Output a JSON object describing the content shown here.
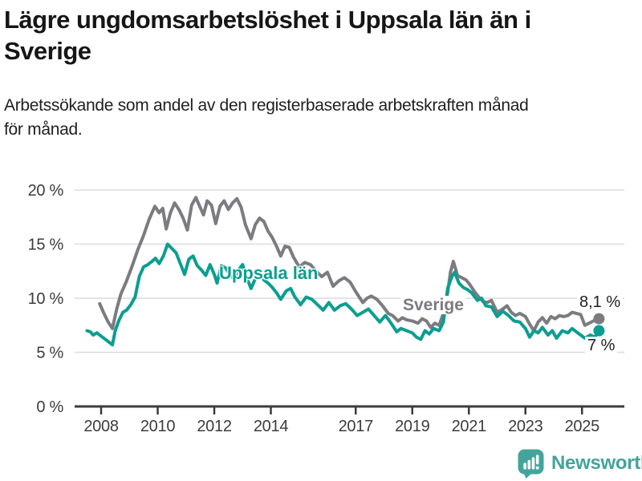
{
  "header": {
    "title_lines": [
      "Lägre ungdomsarbetslöshet i Uppsala län än i",
      "Sverige"
    ],
    "subtitle_lines": [
      "Arbetssökande som andel av den registerbaserade arbetskraften månad",
      "för månad."
    ]
  },
  "chart_data": {
    "type": "line",
    "title": "Lägre ungdomsarbetslöshet i Uppsala län än i Sverige",
    "subtitle": "Arbetssökande som andel av den registerbaserade arbetskraften månad för månad.",
    "unit": "%",
    "grid": "horizontal",
    "legend": "inline-labels",
    "x_axis": {
      "range": [
        2007.5,
        2025.6
      ],
      "ticks": [
        {
          "year": 2008,
          "label": "2008"
        },
        {
          "year": 2010,
          "label": "2010"
        },
        {
          "year": 2012,
          "label": "2012"
        },
        {
          "year": 2014,
          "label": "2014"
        },
        {
          "year": 2017,
          "label": "2017"
        },
        {
          "year": 2019,
          "label": "2019"
        },
        {
          "year": 2021,
          "label": "2021"
        },
        {
          "year": 2023,
          "label": "2023"
        },
        {
          "year": 2025,
          "label": "2025"
        }
      ]
    },
    "y_axis": {
      "range": [
        0,
        20
      ],
      "ticks": [
        {
          "value": 0,
          "label": "0 %"
        },
        {
          "value": 5,
          "label": "5 %"
        },
        {
          "value": 10,
          "label": "10 %"
        },
        {
          "value": 15,
          "label": "15 %"
        },
        {
          "value": 20,
          "label": "20 %"
        }
      ]
    },
    "colors": {
      "gridline": "#dcdcdc",
      "axis_line": "#3b3b3b",
      "axis_text": "#3c3c3c",
      "end_label_text": "#1f1f1f"
    },
    "series": [
      {
        "name": "Sverige",
        "color": "#7b7b80",
        "end_label": "8,1 %",
        "end_value": 8.1,
        "points": [
          [
            2007.95,
            9.5
          ],
          [
            2008.1,
            8.6
          ],
          [
            2008.25,
            7.8
          ],
          [
            2008.4,
            7.2
          ],
          [
            2008.55,
            9.0
          ],
          [
            2008.7,
            10.4
          ],
          [
            2008.9,
            11.6
          ],
          [
            2009.1,
            13.0
          ],
          [
            2009.3,
            14.5
          ],
          [
            2009.5,
            15.8
          ],
          [
            2009.7,
            17.3
          ],
          [
            2009.9,
            18.5
          ],
          [
            2010.05,
            17.9
          ],
          [
            2010.18,
            18.3
          ],
          [
            2010.3,
            16.4
          ],
          [
            2010.45,
            17.9
          ],
          [
            2010.6,
            18.8
          ],
          [
            2010.75,
            18.2
          ],
          [
            2010.9,
            17.4
          ],
          [
            2011.05,
            16.3
          ],
          [
            2011.2,
            18.6
          ],
          [
            2011.35,
            19.3
          ],
          [
            2011.5,
            18.4
          ],
          [
            2011.62,
            17.7
          ],
          [
            2011.75,
            19.0
          ],
          [
            2011.9,
            18.6
          ],
          [
            2012.05,
            16.9
          ],
          [
            2012.2,
            18.5
          ],
          [
            2012.35,
            19.0
          ],
          [
            2012.5,
            18.2
          ],
          [
            2012.65,
            18.8
          ],
          [
            2012.8,
            19.2
          ],
          [
            2012.95,
            18.4
          ],
          [
            2013.1,
            16.8
          ],
          [
            2013.3,
            15.5
          ],
          [
            2013.45,
            16.8
          ],
          [
            2013.6,
            17.4
          ],
          [
            2013.75,
            17.1
          ],
          [
            2013.9,
            16.2
          ],
          [
            2014.05,
            15.6
          ],
          [
            2014.2,
            14.8
          ],
          [
            2014.35,
            13.9
          ],
          [
            2014.5,
            14.8
          ],
          [
            2014.65,
            14.7
          ],
          [
            2014.8,
            13.8
          ],
          [
            2015.0,
            12.9
          ],
          [
            2015.2,
            13.3
          ],
          [
            2015.4,
            13.1
          ],
          [
            2015.6,
            12.5
          ],
          [
            2015.8,
            12.0
          ],
          [
            2016.0,
            12.4
          ],
          [
            2016.2,
            11.1
          ],
          [
            2016.4,
            11.6
          ],
          [
            2016.6,
            11.9
          ],
          [
            2016.8,
            11.5
          ],
          [
            2017.0,
            10.6
          ],
          [
            2017.25,
            9.6
          ],
          [
            2017.4,
            10.0
          ],
          [
            2017.55,
            10.2
          ],
          [
            2017.75,
            9.9
          ],
          [
            2017.95,
            9.3
          ],
          [
            2018.15,
            8.6
          ],
          [
            2018.3,
            8.4
          ],
          [
            2018.5,
            7.9
          ],
          [
            2018.65,
            8.2
          ],
          [
            2018.8,
            8.0
          ],
          [
            2019.0,
            7.9
          ],
          [
            2019.2,
            7.7
          ],
          [
            2019.35,
            8.1
          ],
          [
            2019.5,
            7.9
          ],
          [
            2019.65,
            7.3
          ],
          [
            2019.8,
            7.7
          ],
          [
            2019.95,
            7.5
          ],
          [
            2020.1,
            8.6
          ],
          [
            2020.25,
            10.5
          ],
          [
            2020.35,
            12.4
          ],
          [
            2020.45,
            13.4
          ],
          [
            2020.6,
            12.1
          ],
          [
            2020.75,
            11.9
          ],
          [
            2020.9,
            11.7
          ],
          [
            2021.05,
            11.2
          ],
          [
            2021.2,
            10.6
          ],
          [
            2021.35,
            10.1
          ],
          [
            2021.5,
            9.7
          ],
          [
            2021.65,
            9.6
          ],
          [
            2021.8,
            9.8
          ],
          [
            2022.0,
            8.7
          ],
          [
            2022.2,
            9.0
          ],
          [
            2022.35,
            9.3
          ],
          [
            2022.5,
            8.7
          ],
          [
            2022.65,
            8.4
          ],
          [
            2022.8,
            8.6
          ],
          [
            2023.0,
            8.3
          ],
          [
            2023.15,
            7.6
          ],
          [
            2023.3,
            7.0
          ],
          [
            2023.45,
            7.8
          ],
          [
            2023.6,
            8.2
          ],
          [
            2023.75,
            7.7
          ],
          [
            2023.9,
            8.3
          ],
          [
            2024.05,
            8.1
          ],
          [
            2024.2,
            8.4
          ],
          [
            2024.35,
            8.3
          ],
          [
            2024.5,
            8.4
          ],
          [
            2024.65,
            8.7
          ],
          [
            2024.8,
            8.6
          ],
          [
            2024.95,
            8.5
          ],
          [
            2025.1,
            7.5
          ],
          [
            2025.25,
            7.7
          ],
          [
            2025.4,
            7.9
          ],
          [
            2025.6,
            8.1
          ]
        ]
      },
      {
        "name": "Uppsala län",
        "color": "#0b9e90",
        "end_label": "7 %",
        "end_value": 7.0,
        "points": [
          [
            2007.5,
            7.0
          ],
          [
            2007.62,
            6.9
          ],
          [
            2007.72,
            6.6
          ],
          [
            2007.85,
            6.8
          ],
          [
            2008.0,
            6.5
          ],
          [
            2008.15,
            6.2
          ],
          [
            2008.3,
            5.9
          ],
          [
            2008.4,
            5.7
          ],
          [
            2008.5,
            7.0
          ],
          [
            2008.62,
            7.9
          ],
          [
            2008.77,
            8.7
          ],
          [
            2008.9,
            8.9
          ],
          [
            2009.05,
            9.4
          ],
          [
            2009.2,
            10.1
          ],
          [
            2009.35,
            12.0
          ],
          [
            2009.5,
            12.9
          ],
          [
            2009.65,
            13.1
          ],
          [
            2009.8,
            13.4
          ],
          [
            2009.92,
            13.7
          ],
          [
            2010.05,
            13.2
          ],
          [
            2010.2,
            13.9
          ],
          [
            2010.35,
            15.0
          ],
          [
            2010.5,
            14.6
          ],
          [
            2010.65,
            14.2
          ],
          [
            2010.8,
            13.2
          ],
          [
            2010.95,
            12.2
          ],
          [
            2011.1,
            13.6
          ],
          [
            2011.25,
            13.9
          ],
          [
            2011.4,
            13.0
          ],
          [
            2011.55,
            12.6
          ],
          [
            2011.7,
            12.1
          ],
          [
            2011.85,
            13.1
          ],
          [
            2012.0,
            12.2
          ],
          [
            2012.1,
            11.4
          ],
          [
            2012.25,
            13.0
          ],
          [
            2012.4,
            12.8
          ],
          [
            2012.55,
            12.2
          ],
          [
            2012.7,
            11.8
          ],
          [
            2012.85,
            12.6
          ],
          [
            2013.0,
            13.1
          ],
          [
            2013.15,
            11.9
          ],
          [
            2013.3,
            10.9
          ],
          [
            2013.45,
            11.8
          ],
          [
            2013.6,
            12.4
          ],
          [
            2013.75,
            11.7
          ],
          [
            2013.9,
            11.4
          ],
          [
            2014.05,
            11.0
          ],
          [
            2014.2,
            10.5
          ],
          [
            2014.35,
            9.9
          ],
          [
            2014.55,
            10.7
          ],
          [
            2014.7,
            10.9
          ],
          [
            2014.85,
            10.1
          ],
          [
            2015.05,
            9.4
          ],
          [
            2015.25,
            10.1
          ],
          [
            2015.45,
            9.9
          ],
          [
            2015.65,
            9.4
          ],
          [
            2015.85,
            8.9
          ],
          [
            2016.05,
            9.6
          ],
          [
            2016.25,
            8.9
          ],
          [
            2016.45,
            9.3
          ],
          [
            2016.65,
            9.5
          ],
          [
            2016.85,
            9.0
          ],
          [
            2017.05,
            8.4
          ],
          [
            2017.25,
            8.7
          ],
          [
            2017.45,
            9.0
          ],
          [
            2017.65,
            8.4
          ],
          [
            2017.85,
            7.8
          ],
          [
            2018.05,
            8.4
          ],
          [
            2018.25,
            7.7
          ],
          [
            2018.45,
            6.9
          ],
          [
            2018.6,
            7.2
          ],
          [
            2018.8,
            7.0
          ],
          [
            2019.0,
            6.8
          ],
          [
            2019.15,
            6.4
          ],
          [
            2019.3,
            6.2
          ],
          [
            2019.45,
            7.0
          ],
          [
            2019.6,
            6.7
          ],
          [
            2019.75,
            7.2
          ],
          [
            2019.95,
            7.0
          ],
          [
            2020.1,
            7.8
          ],
          [
            2020.25,
            10.9
          ],
          [
            2020.4,
            12.0
          ],
          [
            2020.5,
            12.4
          ],
          [
            2020.65,
            11.4
          ],
          [
            2020.8,
            11.0
          ],
          [
            2020.95,
            10.8
          ],
          [
            2021.1,
            10.5
          ],
          [
            2021.3,
            9.8
          ],
          [
            2021.45,
            10.0
          ],
          [
            2021.6,
            9.3
          ],
          [
            2021.8,
            9.2
          ],
          [
            2022.0,
            8.3
          ],
          [
            2022.2,
            8.8
          ],
          [
            2022.4,
            8.4
          ],
          [
            2022.6,
            7.9
          ],
          [
            2022.8,
            7.8
          ],
          [
            2023.0,
            7.2
          ],
          [
            2023.15,
            6.4
          ],
          [
            2023.3,
            7.0
          ],
          [
            2023.45,
            6.8
          ],
          [
            2023.6,
            7.3
          ],
          [
            2023.8,
            6.6
          ],
          [
            2023.95,
            7.0
          ],
          [
            2024.1,
            6.3
          ],
          [
            2024.3,
            7.0
          ],
          [
            2024.5,
            6.8
          ],
          [
            2024.65,
            7.2
          ],
          [
            2024.8,
            6.9
          ],
          [
            2024.95,
            6.6
          ],
          [
            2025.1,
            6.3
          ],
          [
            2025.3,
            6.6
          ],
          [
            2025.45,
            6.4
          ],
          [
            2025.6,
            7.0
          ]
        ]
      }
    ]
  },
  "footer": {
    "brand": "Newsworthy",
    "brand_color": "#43a49b"
  }
}
